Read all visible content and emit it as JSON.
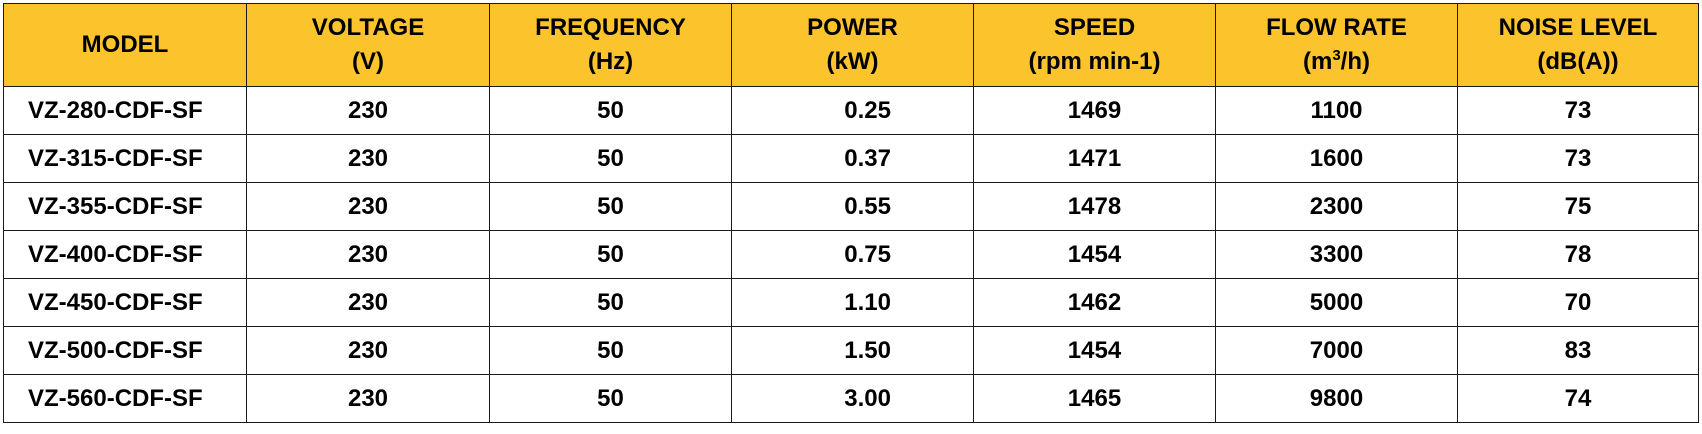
{
  "table": {
    "header": {
      "model": "MODEL",
      "voltage": {
        "line1": "VOLTAGE",
        "line2": "(V)"
      },
      "frequency": {
        "line1": "FREQUENCY",
        "line2": "(Hz)"
      },
      "power": {
        "line1": "POWER",
        "line2": "(kW)"
      },
      "speed": {
        "line1": "SPEED",
        "line2": "(rpm min-1)"
      },
      "flow": {
        "line1": "FLOW RATE",
        "line2_pre": "(m",
        "line2_sup": "3",
        "line2_post": "/h)"
      },
      "noise": {
        "line1": "NOISE LEVEL",
        "line2": "(dB(A))"
      }
    },
    "rows": [
      {
        "model": "VZ-280-CDF-SF",
        "voltage": "230",
        "frequency": "50",
        "power": "0.25",
        "speed": "1469",
        "flow": "1100",
        "noise": "73"
      },
      {
        "model": "VZ-315-CDF-SF",
        "voltage": "230",
        "frequency": "50",
        "power": "0.37",
        "speed": "1471",
        "flow": "1600",
        "noise": "73"
      },
      {
        "model": "VZ-355-CDF-SF",
        "voltage": "230",
        "frequency": "50",
        "power": "0.55",
        "speed": "1478",
        "flow": "2300",
        "noise": "75"
      },
      {
        "model": "VZ-400-CDF-SF",
        "voltage": "230",
        "frequency": "50",
        "power": "0.75",
        "speed": "1454",
        "flow": "3300",
        "noise": "78"
      },
      {
        "model": "VZ-450-CDF-SF",
        "voltage": "230",
        "frequency": "50",
        "power": "1.10",
        "speed": "1462",
        "flow": "5000",
        "noise": "70"
      },
      {
        "model": "VZ-500-CDF-SF",
        "voltage": "230",
        "frequency": "50",
        "power": "1.50",
        "speed": "1454",
        "flow": "7000",
        "noise": "83"
      },
      {
        "model": "VZ-560-CDF-SF",
        "voltage": "230",
        "frequency": "50",
        "power": "3.00",
        "speed": "1465",
        "flow": "9800",
        "noise": "74"
      }
    ]
  },
  "colors": {
    "header_background": "#fbc32c",
    "border": "#1a1a1a",
    "text": "#000000"
  }
}
